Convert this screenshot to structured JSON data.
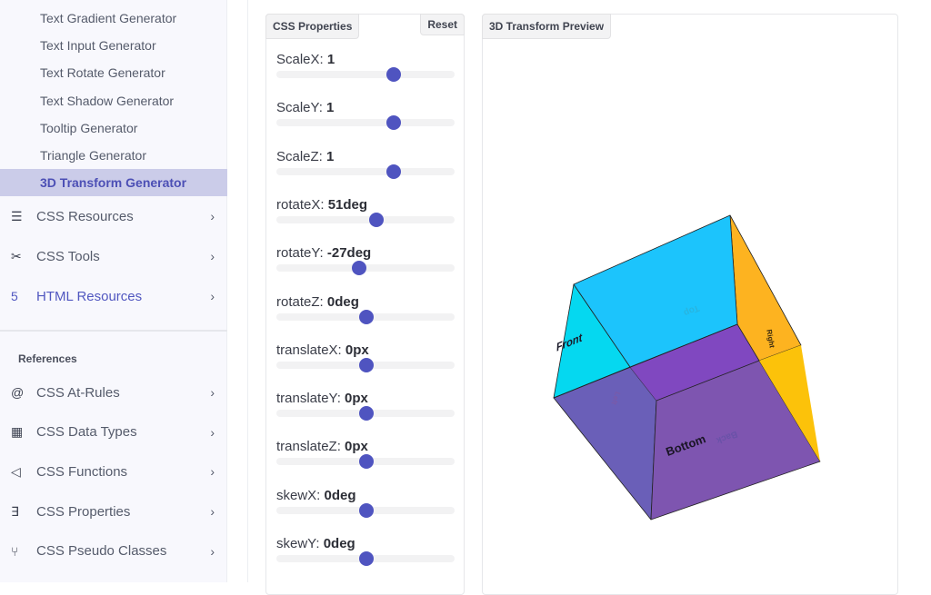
{
  "sidebar": {
    "sub_items": [
      "Text Gradient Generator",
      "Text Input Generator",
      "Text Rotate Generator",
      "Text Shadow Generator",
      "Tooltip Generator",
      "Triangle Generator"
    ],
    "active_item": "3D Transform Generator",
    "sections": [
      {
        "label": "CSS Resources",
        "icon": "list-icon",
        "glyph": "☰"
      },
      {
        "label": "CSS Tools",
        "icon": "tools-icon",
        "glyph": "✂"
      },
      {
        "label": "HTML Resources",
        "icon": "html5-icon",
        "glyph": "5"
      }
    ],
    "references_heading": "References",
    "references": [
      {
        "label": "CSS At-Rules",
        "icon": "at-icon",
        "glyph": "@"
      },
      {
        "label": "CSS Data Types",
        "icon": "table-icon",
        "glyph": "▦"
      },
      {
        "label": "CSS Functions",
        "icon": "function-icon",
        "glyph": "◁"
      },
      {
        "label": "CSS Properties",
        "icon": "css3-icon",
        "glyph": "∃"
      },
      {
        "label": "CSS Pseudo Classes",
        "icon": "branch-icon",
        "glyph": "⑂"
      }
    ],
    "chevron": "›"
  },
  "properties_panel": {
    "title": "CSS Properties",
    "reset_label": "Reset",
    "sliders": [
      {
        "label": "ScaleX: ",
        "value": "1",
        "percent": 65.6
      },
      {
        "label": "ScaleY: ",
        "value": "1",
        "percent": 65.6
      },
      {
        "label": "ScaleZ: ",
        "value": "1",
        "percent": 65.6
      },
      {
        "label": "rotateX: ",
        "value": "51deg",
        "percent": 56
      },
      {
        "label": "rotateY: ",
        "value": "-27deg",
        "percent": 46.5
      },
      {
        "label": "rotateZ: ",
        "value": "0deg",
        "percent": 50.5
      },
      {
        "label": "translateX: ",
        "value": "0px",
        "percent": 50.5
      },
      {
        "label": "translateY: ",
        "value": "0px",
        "percent": 50.5
      },
      {
        "label": "translateZ: ",
        "value": "0px",
        "percent": 50.5
      },
      {
        "label": "skewX: ",
        "value": "0deg",
        "percent": 50.5
      },
      {
        "label": "skewY: ",
        "value": "0deg",
        "percent": 50.5
      }
    ]
  },
  "preview_panel": {
    "title": "3D Transform Preview",
    "faces": {
      "front": "Front",
      "top": "Top",
      "bottom": "Bottom",
      "back": "Back",
      "left": "Left",
      "right": "Right"
    },
    "colors": {
      "front": "#1cc4fc",
      "left": "#05d8f0",
      "right": "#fdb320",
      "right2": "#fcc20a",
      "inner": "#8048c0",
      "bottom": "#7e55b0",
      "leftlow": "#6a5fb8"
    }
  }
}
